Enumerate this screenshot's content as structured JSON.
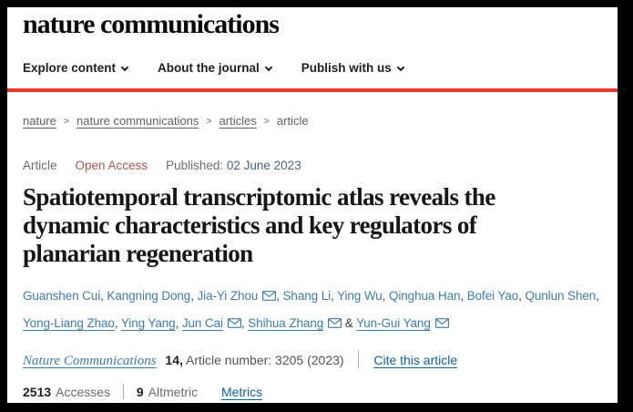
{
  "header": {
    "logo": "nature communications",
    "nav_items": [
      {
        "label": "Explore content"
      },
      {
        "label": "About the journal"
      },
      {
        "label": "Publish with us"
      }
    ]
  },
  "breadcrumb": {
    "separator": ">",
    "items": [
      {
        "label": "nature",
        "current": false
      },
      {
        "label": "nature communications",
        "current": false
      },
      {
        "label": "articles",
        "current": false
      },
      {
        "label": "article",
        "current": true
      }
    ]
  },
  "article_meta": {
    "type_label": "Article",
    "access_label": "Open Access",
    "published_label": "Published:",
    "published_date": "02 June 2023"
  },
  "title": {
    "full": "Spatiotemporal transcriptomic atlas reveals the dynamic characteristics and key regulators of planarian regeneration",
    "lines": [
      "Spatiotemporal transcriptomic atlas reveals the",
      "dynamic characteristics and key regulators of",
      "planarian regeneration"
    ]
  },
  "authors": {
    "items": [
      {
        "name": "Guanshen Cui",
        "email_icon": false,
        "underline": false,
        "sep": ", "
      },
      {
        "name": "Kangning Dong",
        "email_icon": false,
        "underline": false,
        "sep": ", "
      },
      {
        "name": "Jia-Yi Zhou",
        "email_icon": true,
        "underline": false,
        "sep": ", "
      },
      {
        "name": "Shang Li",
        "email_icon": false,
        "underline": false,
        "sep": ", "
      },
      {
        "name": "Ying Wu",
        "email_icon": false,
        "underline": false,
        "sep": ", "
      },
      {
        "name": "Qinghua Han",
        "email_icon": false,
        "underline": false,
        "sep": ", "
      },
      {
        "name": "Bofei Yao",
        "email_icon": false,
        "underline": false,
        "sep": ", "
      },
      {
        "name": "Qunlun Shen",
        "email_icon": false,
        "underline": false,
        "sep": ",",
        "break_after": true
      },
      {
        "name": "Yong-Liang Zhao",
        "email_icon": false,
        "underline": true,
        "sep": ", "
      },
      {
        "name": "Ying Yang",
        "email_icon": false,
        "underline": true,
        "sep": ", "
      },
      {
        "name": "Jun Cai",
        "email_icon": true,
        "underline": true,
        "sep": ", "
      },
      {
        "name": "Shihua Zhang",
        "email_icon": true,
        "underline": true,
        "sep": " & "
      },
      {
        "name": "Yun-Gui Yang",
        "email_icon": true,
        "underline": true,
        "sep": ""
      }
    ]
  },
  "citation": {
    "journal": "Nature Communications",
    "volume": "14",
    "volume_suffix": ",",
    "article_number_text": "Article number: 3205 (2023)",
    "cite_link": "Cite this article"
  },
  "metrics": {
    "accesses_count": "2513",
    "accesses_label": "Accesses",
    "altmetric_count": "9",
    "altmetric_label": "Altmetric",
    "metrics_link": "Metrics"
  },
  "colors": {
    "accent_red": "#e8392b",
    "open_access_red": "#b5564a",
    "author_link_blue": "#3f7cab",
    "strong_link_blue": "#0b639e",
    "title_dark": "#161616",
    "text_gray": "#6b6b6b"
  }
}
